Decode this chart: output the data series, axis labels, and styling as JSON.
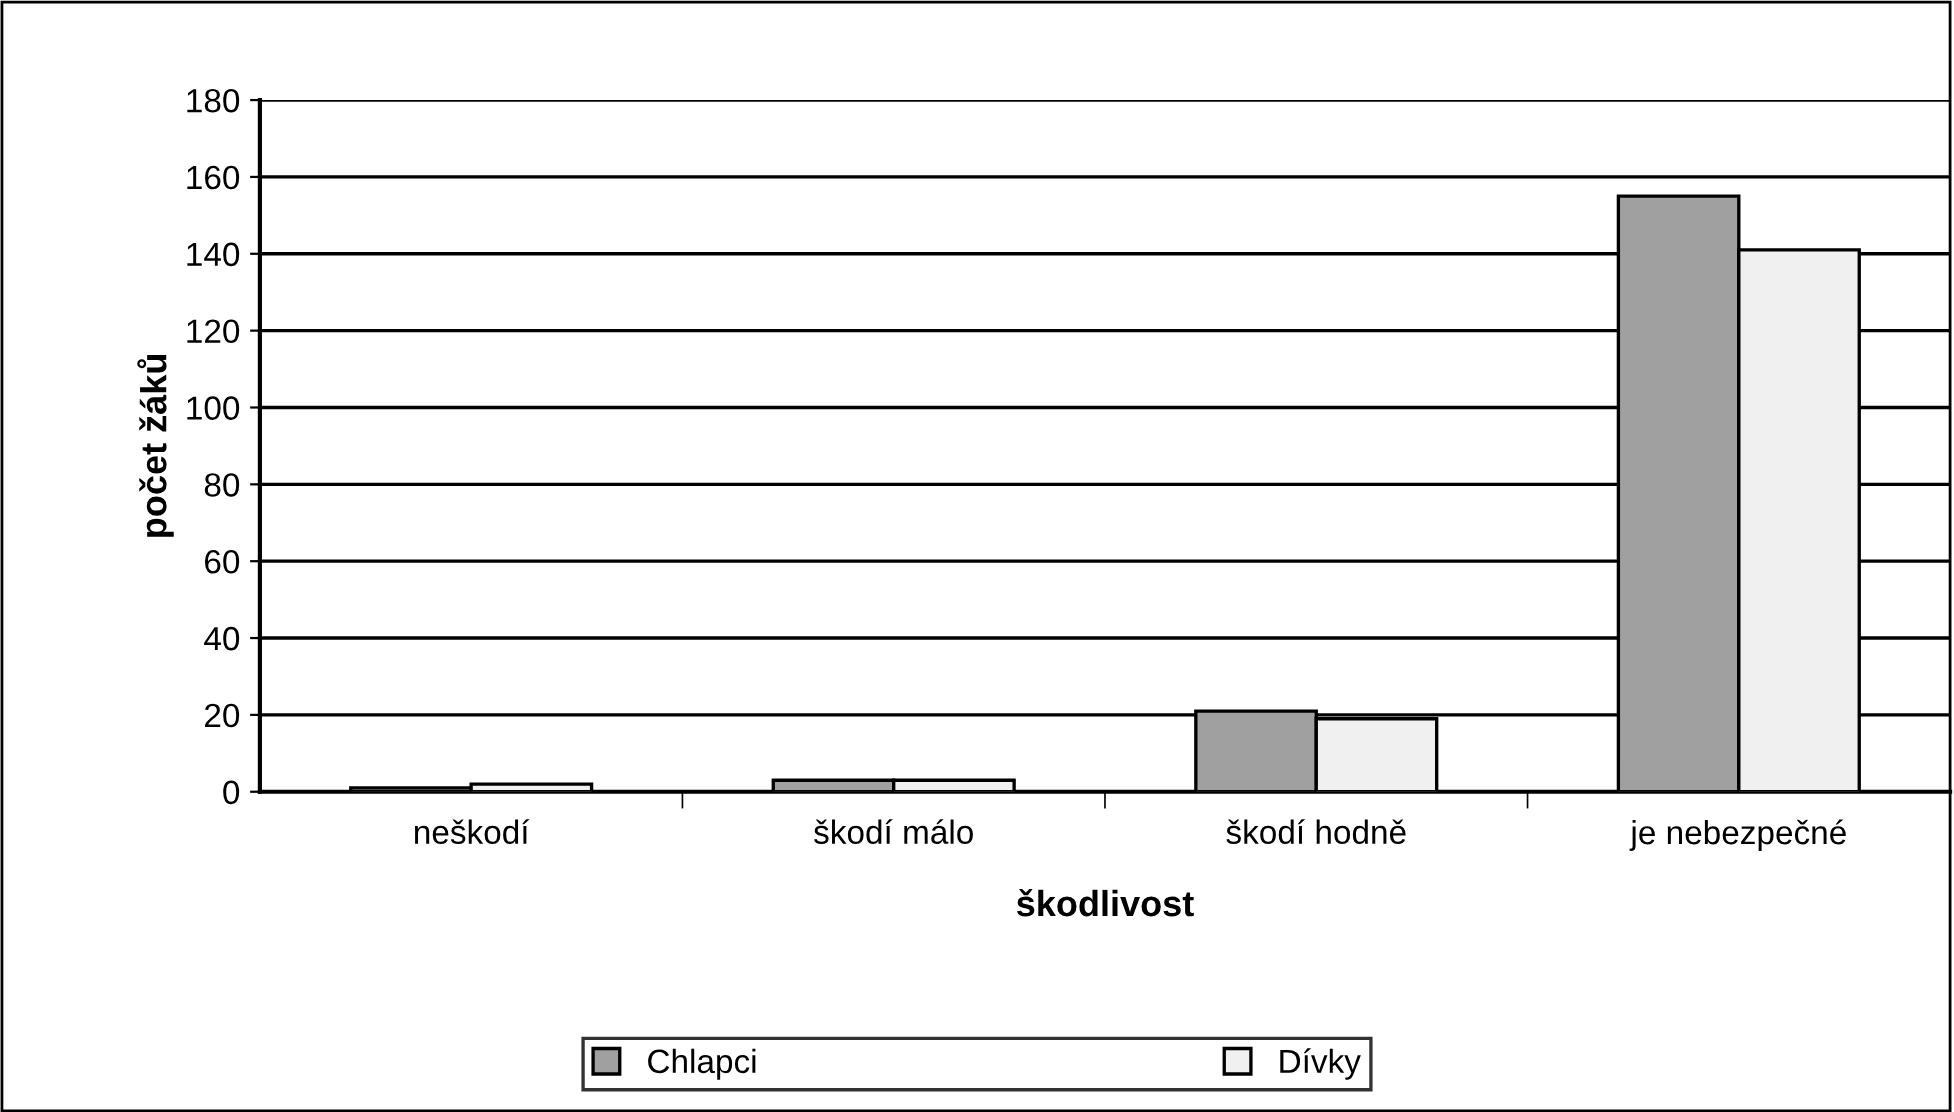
{
  "chart_data": {
    "type": "bar",
    "xlabel": "škodlivost",
    "ylabel": "počet žáků",
    "categories": [
      "neškodí",
      "škodí málo",
      "škodí hodně",
      "je nebezpečné"
    ],
    "series": [
      {
        "name": "Chlapci",
        "color": "#a0a0a0",
        "values": [
          1,
          3,
          21,
          155
        ]
      },
      {
        "name": "Dívky",
        "color": "#f0f0f0",
        "values": [
          2,
          3,
          19,
          141
        ]
      }
    ],
    "ylim": [
      0,
      180
    ],
    "yticks": [
      0,
      20,
      40,
      60,
      80,
      100,
      120,
      140,
      160,
      180
    ],
    "grid": "y",
    "legend": "bottom"
  }
}
